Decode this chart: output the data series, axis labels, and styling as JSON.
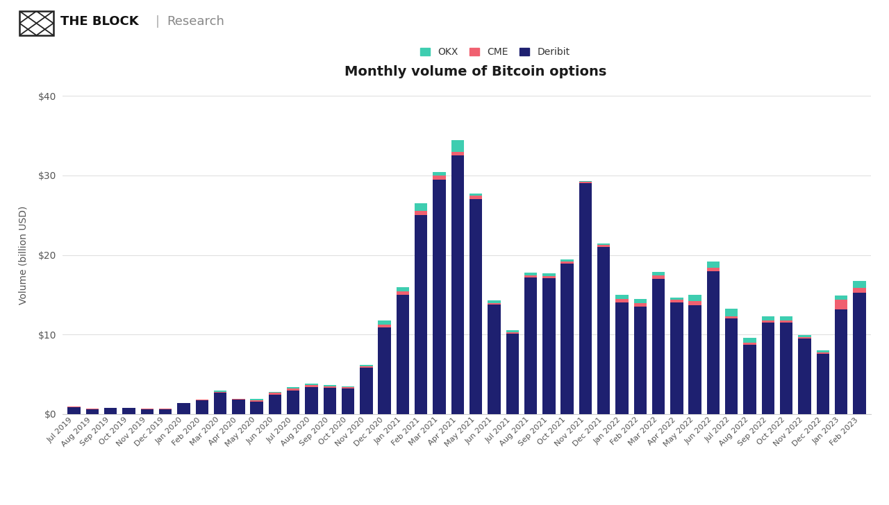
{
  "title": "Monthly volume of Bitcoin options",
  "ylabel": "Volume (billion USD)",
  "background_color": "#ffffff",
  "grid_color": "#e0e0e0",
  "colors": {
    "OKX": "#3ecdb0",
    "CME": "#f06070",
    "Deribit": "#1e2070"
  },
  "months": [
    "Jul 2019",
    "Aug 2019",
    "Sep 2019",
    "Oct 2019",
    "Nov 2019",
    "Dec 2019",
    "Jan 2020",
    "Feb 2020",
    "Mar 2020",
    "Apr 2020",
    "May 2020",
    "Jun 2020",
    "Jul 2020",
    "Aug 2020",
    "Sep 2020",
    "Oct 2020",
    "Nov 2020",
    "Dec 2020",
    "Jan 2021",
    "Feb 2021",
    "Mar 2021",
    "Apr 2021",
    "May 2021",
    "Jun 2021",
    "Jul 2021",
    "Aug 2021",
    "Sep 2021",
    "Oct 2021",
    "Nov 2021",
    "Dec 2021",
    "Jan 2022",
    "Feb 2022",
    "Mar 2022",
    "Apr 2022",
    "May 2022",
    "Jun 2022",
    "Jul 2022",
    "Aug 2022",
    "Sep 2022",
    "Oct 2022",
    "Nov 2022",
    "Dec 2022",
    "Jan 2023",
    "Feb 2023"
  ],
  "deribit": [
    0.9,
    0.65,
    0.75,
    0.75,
    0.65,
    0.65,
    1.35,
    1.75,
    2.7,
    1.8,
    1.55,
    2.45,
    3.0,
    3.4,
    3.3,
    3.2,
    5.8,
    10.9,
    15.0,
    25.0,
    29.5,
    32.5,
    27.0,
    13.8,
    10.1,
    17.2,
    17.1,
    18.9,
    29.0,
    21.0,
    14.0,
    13.5,
    17.0,
    14.0,
    13.7,
    18.0,
    12.0,
    8.7,
    11.5,
    11.5,
    9.5,
    7.6,
    13.2,
    15.3
  ],
  "cme": [
    0.04,
    0.04,
    0.04,
    0.04,
    0.04,
    0.04,
    0.04,
    0.08,
    0.12,
    0.08,
    0.18,
    0.25,
    0.18,
    0.25,
    0.18,
    0.18,
    0.25,
    0.38,
    0.45,
    0.55,
    0.48,
    0.48,
    0.45,
    0.18,
    0.18,
    0.28,
    0.28,
    0.28,
    0.18,
    0.28,
    0.48,
    0.48,
    0.48,
    0.38,
    0.48,
    0.38,
    0.28,
    0.28,
    0.28,
    0.28,
    0.18,
    0.18,
    1.15,
    0.55
  ],
  "okx": [
    0.04,
    0.0,
    0.0,
    0.0,
    0.0,
    0.0,
    0.0,
    0.0,
    0.18,
    0.0,
    0.18,
    0.08,
    0.18,
    0.18,
    0.18,
    0.08,
    0.18,
    0.48,
    0.48,
    0.95,
    0.45,
    1.45,
    0.28,
    0.28,
    0.28,
    0.28,
    0.28,
    0.28,
    0.08,
    0.18,
    0.48,
    0.48,
    0.38,
    0.28,
    0.78,
    0.78,
    0.98,
    0.58,
    0.48,
    0.48,
    0.28,
    0.28,
    0.58,
    0.88
  ],
  "ylim": [
    0,
    40
  ],
  "yticks": [
    0,
    10,
    20,
    30,
    40
  ],
  "header_text_block": "THE BLOCK",
  "header_text_research": "Research",
  "header_separator": "|"
}
